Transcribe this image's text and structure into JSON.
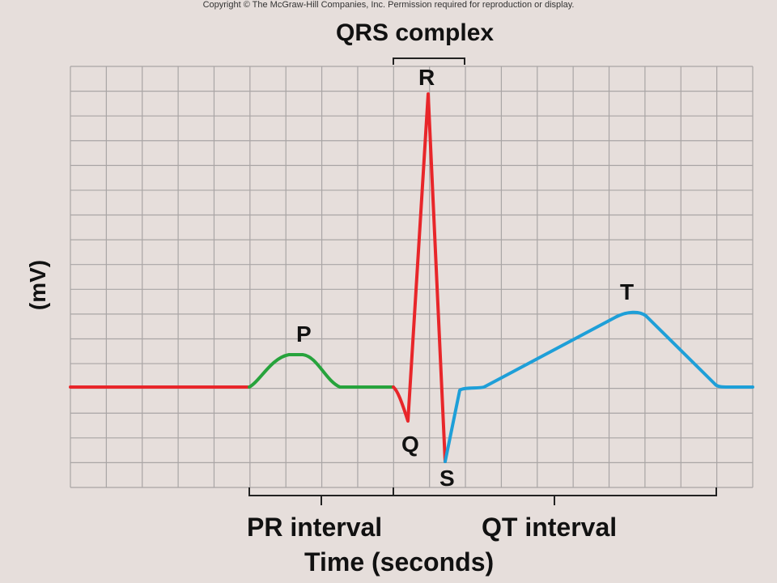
{
  "copyright": "Copyright © The McGraw-Hill Companies, Inc. Permission required for reproduction or display.",
  "labels": {
    "qrs_complex": "QRS complex",
    "y_axis": "(mV)",
    "x_axis": "Time (seconds)",
    "pr_interval": "PR interval",
    "qt_interval": "QT interval",
    "wave_p": "P",
    "wave_q": "Q",
    "wave_r": "R",
    "wave_s": "S",
    "wave_t": "T"
  },
  "colors": {
    "background": "#e6dedb",
    "grid": "#a9a5a5",
    "baseline_and_qrs": "#e8262a",
    "p_wave": "#27a33c",
    "t_wave": "#1e9fd8",
    "brackets": "#222222"
  }
}
